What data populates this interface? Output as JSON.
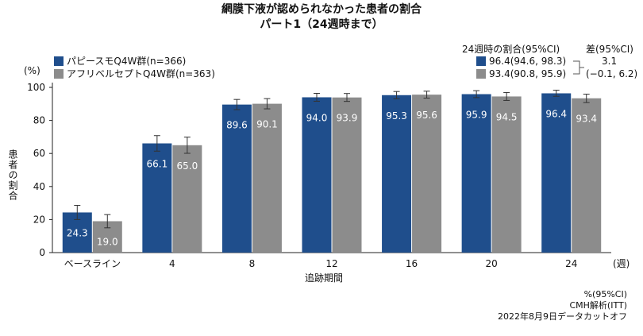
{
  "title": "網膜下液が認められなかった患者の割合",
  "subtitle": "パート1（24週時まで）",
  "colors": {
    "series1": "#1f4e8c",
    "series2": "#8c8c8c"
  },
  "legend": [
    {
      "label": "パピースモQ4W群(n=366)"
    },
    {
      "label": "アフリベルセプトQ4W群(n=363)"
    }
  ],
  "stats": {
    "header": "24週時の割合(95%CI)",
    "diff_header": "差(95%CI)",
    "rows": [
      {
        "value": "96.4(94.6, 98.3)"
      },
      {
        "value": "93.4(90.8, 95.9)"
      }
    ],
    "diff_value": "3.1",
    "diff_ci": "(−0.1, 6.2)"
  },
  "footnotes": {
    "line1": "%(95%CI)",
    "line2": "CMH解析(ITT)",
    "line3": "2022年8月9日データカットオフ"
  },
  "chart_data": {
    "type": "bar",
    "xlabel": "追跡期間",
    "xunit": "(週)",
    "ylabel": "患者の割合",
    "yunit": "(%)",
    "ylim": [
      0,
      100
    ],
    "yticks": [
      0,
      20,
      40,
      60,
      80,
      100
    ],
    "grid": false,
    "legend_position": "top-left",
    "categories": [
      "ベースライン",
      "4",
      "8",
      "12",
      "16",
      "20",
      "24"
    ],
    "series": [
      {
        "name": "パピースモQ4W群(n=366)",
        "values": [
          24.3,
          66.1,
          89.6,
          94.0,
          95.3,
          95.9,
          96.4
        ],
        "ci_low": [
          20.0,
          61.4,
          86.5,
          91.6,
          93.1,
          93.8,
          94.6
        ],
        "ci_high": [
          28.6,
          70.8,
          92.7,
          96.4,
          97.5,
          98.0,
          98.3
        ]
      },
      {
        "name": "アフリベルセプトQ4W群(n=363)",
        "values": [
          19.0,
          65.0,
          90.1,
          93.9,
          95.6,
          94.5,
          93.4
        ],
        "ci_low": [
          15.0,
          60.1,
          87.0,
          91.5,
          93.5,
          92.1,
          90.8
        ],
        "ci_high": [
          23.0,
          69.9,
          93.2,
          96.3,
          97.7,
          96.9,
          95.9
        ]
      }
    ]
  }
}
